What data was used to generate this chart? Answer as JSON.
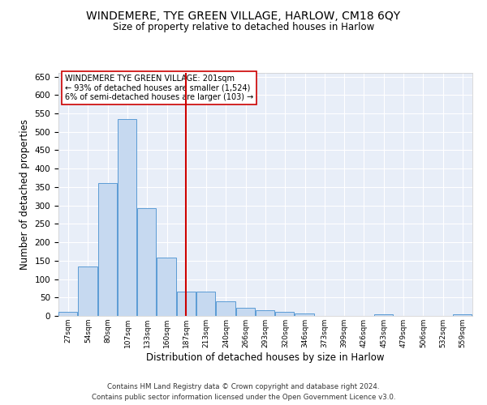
{
  "title_line1": "WINDEMERE, TYE GREEN VILLAGE, HARLOW, CM18 6QY",
  "title_line2": "Size of property relative to detached houses in Harlow",
  "xlabel": "Distribution of detached houses by size in Harlow",
  "ylabel": "Number of detached properties",
  "bin_labels": [
    "27sqm",
    "54sqm",
    "80sqm",
    "107sqm",
    "133sqm",
    "160sqm",
    "187sqm",
    "213sqm",
    "240sqm",
    "266sqm",
    "293sqm",
    "320sqm",
    "346sqm",
    "373sqm",
    "399sqm",
    "426sqm",
    "453sqm",
    "479sqm",
    "506sqm",
    "532sqm",
    "559sqm"
  ],
  "bar_values": [
    10,
    135,
    360,
    535,
    292,
    158,
    65,
    65,
    40,
    22,
    15,
    10,
    7,
    0,
    0,
    0,
    5,
    0,
    0,
    0,
    5
  ],
  "bar_color": "#c6d9f0",
  "bar_edgecolor": "#5b9bd5",
  "vline_x": 201,
  "vline_color": "#cc0000",
  "annotation_text": "WINDEMERE TYE GREEN VILLAGE: 201sqm\n← 93% of detached houses are smaller (1,524)\n6% of semi-detached houses are larger (103) →",
  "annotation_box_edgecolor": "#cc0000",
  "ylim": [
    0,
    660
  ],
  "yticks": [
    0,
    50,
    100,
    150,
    200,
    250,
    300,
    350,
    400,
    450,
    500,
    550,
    600,
    650
  ],
  "background_color": "#e8eef8",
  "footer_line1": "Contains HM Land Registry data © Crown copyright and database right 2024.",
  "footer_line2": "Contains public sector information licensed under the Open Government Licence v3.0.",
  "bin_width": 27
}
